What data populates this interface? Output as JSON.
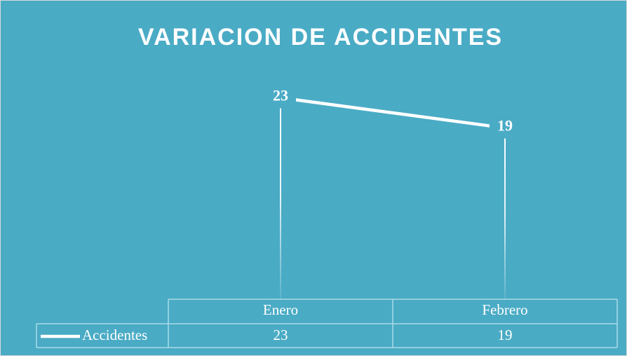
{
  "chart_data": {
    "type": "line",
    "title": "VARIACION DE ACCIDENTES",
    "categories": [
      "Enero",
      "Febrero"
    ],
    "series": [
      {
        "name": "Accidentes",
        "color": "#ffffff",
        "values": [
          23,
          19
        ]
      }
    ],
    "ylim": [
      0,
      25
    ],
    "data_table": true
  }
}
